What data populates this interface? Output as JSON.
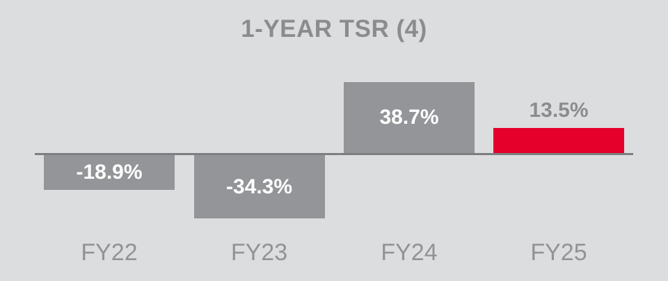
{
  "title": "1-YEAR TSR (4)",
  "colors": {
    "background": "#DCDDDE",
    "bar_gray": "#939598",
    "bar_red": "#E4002B",
    "value_label_inside": "#FFFFFF",
    "value_label_outside": "#8A8C8E",
    "title_text": "#8A8C8E",
    "axis_line": "#7C7E81",
    "category_text": "#919396"
  },
  "chart_data": {
    "type": "bar",
    "title": "1-YEAR TSR (4)",
    "xlabel": "",
    "ylabel": "",
    "categories": [
      "FY22",
      "FY23",
      "FY24",
      "FY25"
    ],
    "values": [
      -18.9,
      -34.3,
      38.7,
      13.5
    ],
    "value_labels": [
      "-18.9%",
      "-34.3%",
      "38.7%",
      "13.5%"
    ],
    "bar_colors": [
      "#939598",
      "#939598",
      "#939598",
      "#E4002B"
    ],
    "label_placement": [
      "inside",
      "inside",
      "inside",
      "above"
    ],
    "baseline": 0,
    "ylim": [
      -40,
      45
    ],
    "grid": false,
    "legend": null,
    "axis_line_visible": true,
    "tick_labels_visible": true
  }
}
